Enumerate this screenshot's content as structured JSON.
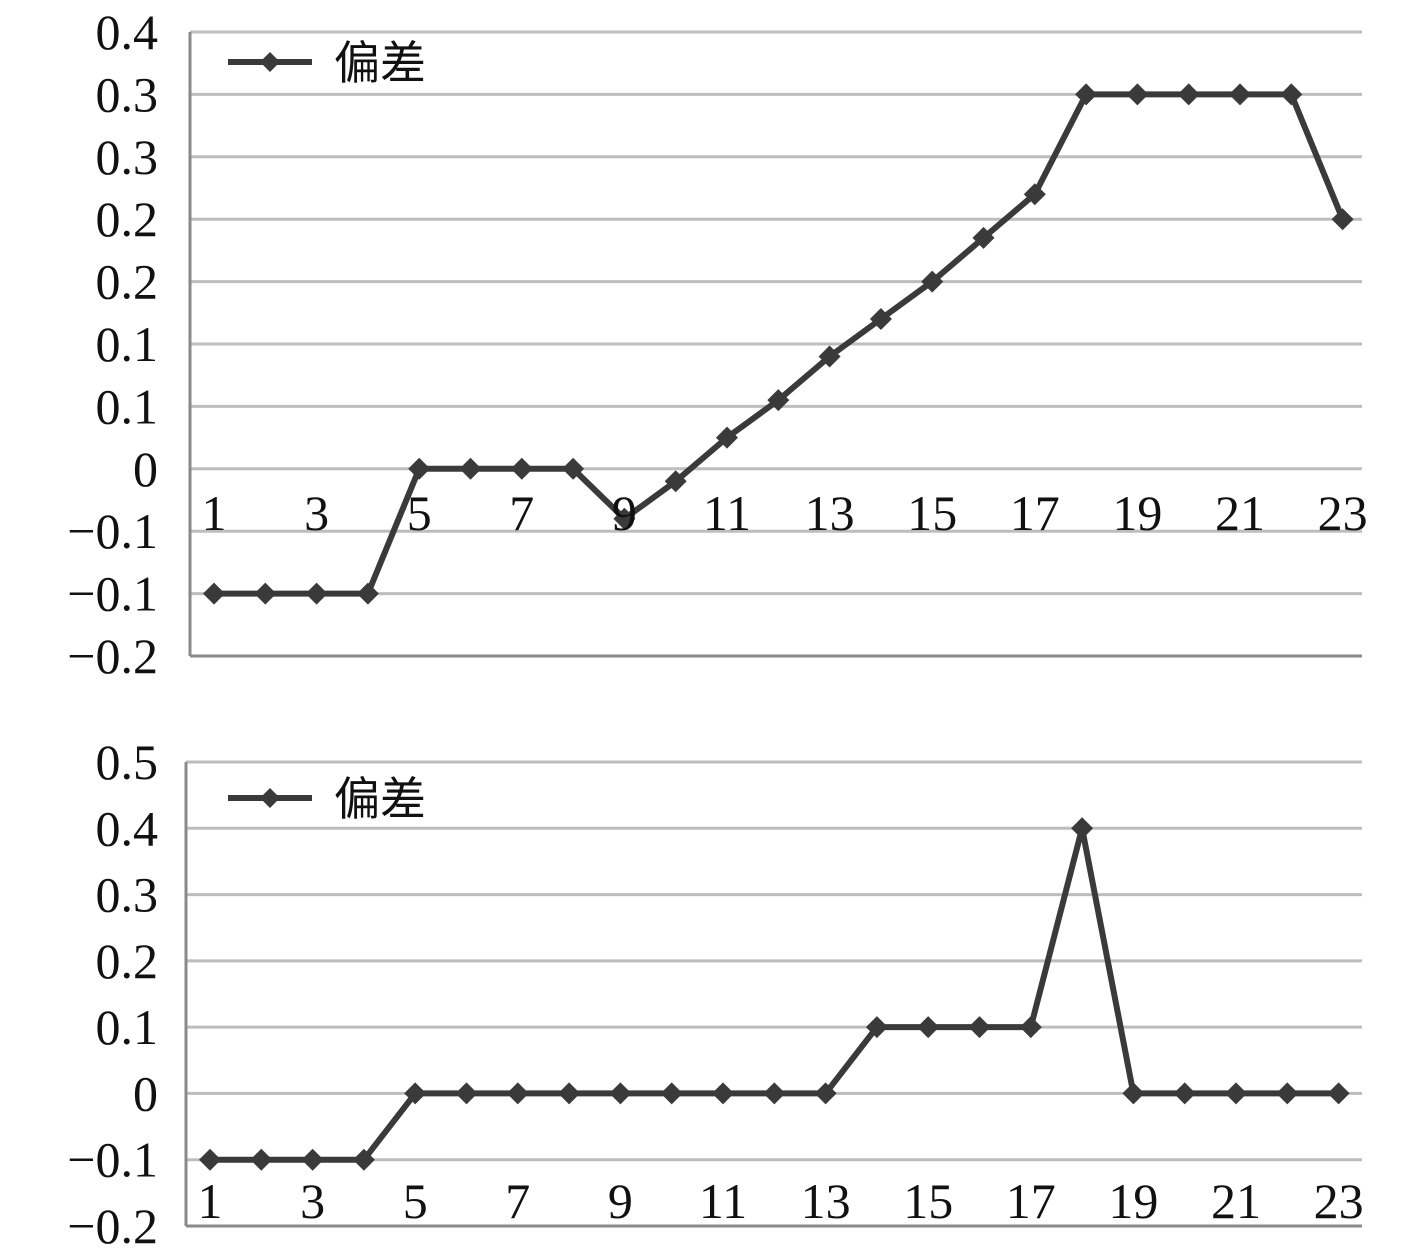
{
  "chart_data": [
    {
      "type": "line",
      "y_tick_labels": [
        "0.4",
        "0.3",
        "0.3",
        "0.2",
        "0.2",
        "0.1",
        "0.1",
        "0",
        "−0.1",
        "−0.1",
        "−0.2"
      ],
      "x_tick_labels": [
        "1",
        "3",
        "5",
        "7",
        "9",
        "11",
        "13",
        "15",
        "17",
        "19",
        "21",
        "23"
      ],
      "x": [
        1,
        2,
        3,
        4,
        5,
        6,
        7,
        8,
        9,
        10,
        11,
        12,
        13,
        14,
        15,
        16,
        17,
        18,
        19,
        20,
        21,
        22,
        23
      ],
      "series": [
        {
          "name": "偏差",
          "values": [
            -0.1,
            -0.1,
            -0.1,
            -0.1,
            0,
            0,
            0,
            0,
            -0.04,
            -0.01,
            0.025,
            0.055,
            0.09,
            0.12,
            0.15,
            0.185,
            0.22,
            0.3,
            0.3,
            0.3,
            0.3,
            0.3,
            0.2
          ]
        }
      ],
      "ylim": [
        -0.15,
        0.35
      ],
      "grid": true,
      "legend": "top-left",
      "colors": {
        "series": "#3a3a3a",
        "grid": "#bdbdbd",
        "axis": "#8a8a8a"
      }
    },
    {
      "type": "line",
      "y_tick_labels": [
        "0.5",
        "0.4",
        "0.3",
        "0.2",
        "0.1",
        "0",
        "−0.1",
        "−0.2"
      ],
      "x_tick_labels": [
        "1",
        "3",
        "5",
        "7",
        "9",
        "11",
        "13",
        "15",
        "17",
        "19",
        "21",
        "23"
      ],
      "x": [
        1,
        2,
        3,
        4,
        5,
        6,
        7,
        8,
        9,
        10,
        11,
        12,
        13,
        14,
        15,
        16,
        17,
        18,
        19,
        20,
        21,
        22,
        23
      ],
      "series": [
        {
          "name": "偏差",
          "values": [
            -0.1,
            -0.1,
            -0.1,
            -0.1,
            0,
            0,
            0,
            0,
            0,
            0,
            0,
            0,
            0,
            0.1,
            0.1,
            0.1,
            0.1,
            0.4,
            0,
            0,
            0,
            0,
            0
          ]
        }
      ],
      "ylim": [
        -0.2,
        0.5
      ],
      "grid": true,
      "legend": "top-left",
      "colors": {
        "series": "#3a3a3a",
        "grid": "#bdbdbd",
        "axis": "#8a8a8a"
      }
    }
  ]
}
